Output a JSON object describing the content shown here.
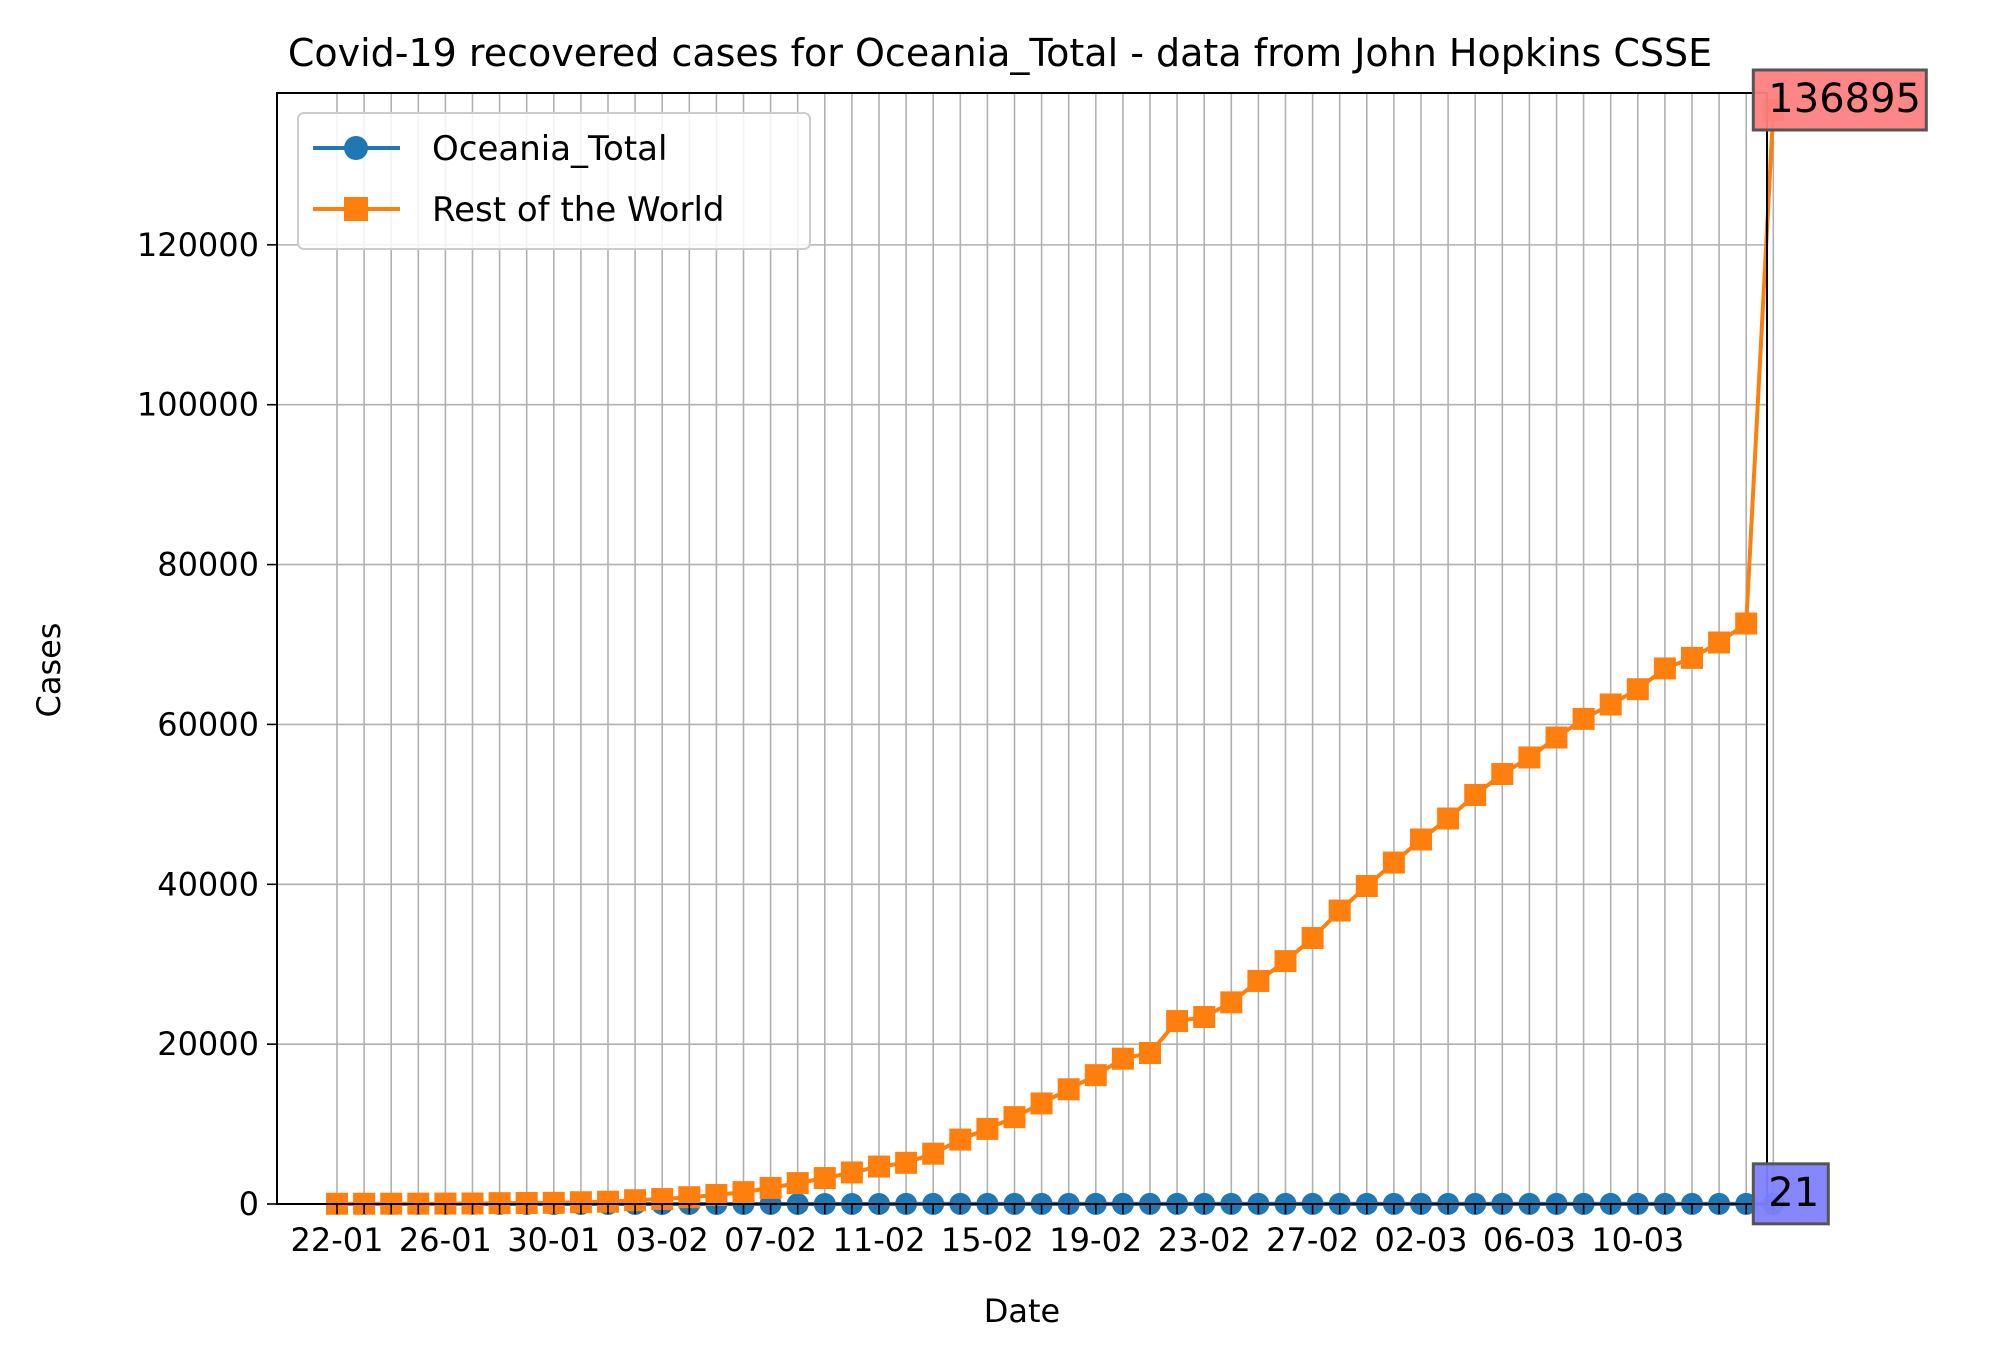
{
  "chart_data": {
    "type": "line",
    "title": "Covid-19 recovered cases for Oceania_Total - data from John Hopkins CSSE",
    "xlabel": "Date",
    "ylabel": "Cases",
    "ylim": [
      0,
      139000
    ],
    "yticks": [
      0,
      20000,
      40000,
      60000,
      80000,
      100000,
      120000
    ],
    "x": [
      "22-01",
      "23-01",
      "24-01",
      "25-01",
      "26-01",
      "27-01",
      "28-01",
      "29-01",
      "30-01",
      "31-01",
      "01-02",
      "02-02",
      "03-02",
      "04-02",
      "05-02",
      "06-02",
      "07-02",
      "08-02",
      "09-02",
      "10-02",
      "11-02",
      "12-02",
      "13-02",
      "14-02",
      "15-02",
      "16-02",
      "17-02",
      "18-02",
      "19-02",
      "20-02",
      "21-02",
      "22-02",
      "23-02",
      "24-02",
      "25-02",
      "26-02",
      "27-02",
      "28-02",
      "29-02",
      "01-03",
      "02-03",
      "03-03",
      "04-03",
      "05-03",
      "06-03",
      "07-03",
      "08-03",
      "09-03",
      "10-03",
      "11-03",
      "12-03",
      "13-03",
      "14-03",
      "15-03"
    ],
    "xtick_labels": [
      "22-01",
      "26-01",
      "30-01",
      "03-02",
      "07-02",
      "11-02",
      "15-02",
      "19-02",
      "23-02",
      "27-02",
      "02-03",
      "06-03",
      "10-03"
    ],
    "grid": true,
    "legend": "upper-left",
    "series": [
      {
        "name": "Oceania_Total",
        "color": "#1f77b4",
        "marker": "circle",
        "values": [
          0,
          0,
          0,
          0,
          0,
          0,
          0,
          0,
          0,
          0,
          0,
          0,
          0,
          0,
          0,
          2,
          2,
          2,
          2,
          2,
          2,
          8,
          8,
          8,
          8,
          8,
          8,
          8,
          8,
          8,
          8,
          8,
          8,
          8,
          11,
          11,
          11,
          11,
          11,
          11,
          11,
          11,
          11,
          11,
          11,
          11,
          11,
          11,
          11,
          11,
          11,
          11,
          11,
          21
        ]
      },
      {
        "name": "Rest of the World",
        "color": "#ff7f0e",
        "marker": "square",
        "values": [
          28,
          30,
          36,
          39,
          52,
          61,
          107,
          126,
          143,
          222,
          284,
          472,
          623,
          852,
          1124,
          1487,
          2011,
          2616,
          3244,
          3946,
          4683,
          5150,
          6295,
          8058,
          9395,
          10865,
          12583,
          14352,
          16121,
          18177,
          18890,
          22886,
          23394,
          25227,
          27905,
          30384,
          33277,
          36711,
          39782,
          42716,
          45602,
          48229,
          51170,
          53796,
          55865,
          58358,
          60694,
          62494,
          64404,
          67003,
          68324,
          70251,
          72624,
          136874
        ]
      }
    ],
    "annotations": [
      {
        "text": "136895",
        "series": "Rest of the World",
        "box_color": "#ff7f7f"
      },
      {
        "text": "21",
        "series": "Oceania_Total",
        "box_color": "#7f7fff"
      }
    ]
  }
}
